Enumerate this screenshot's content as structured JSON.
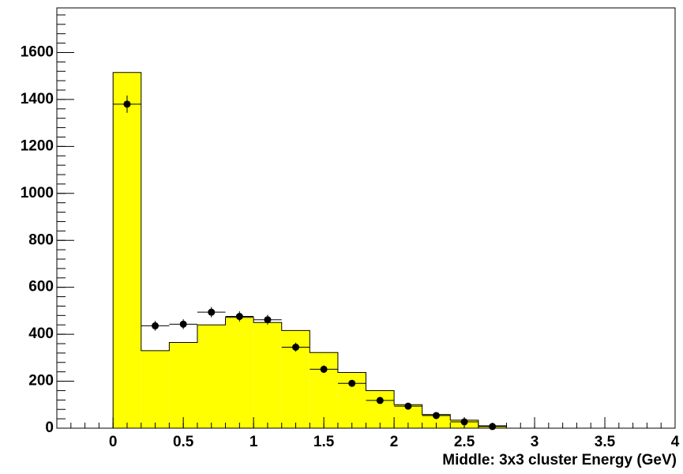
{
  "chart_data": {
    "type": "histogram",
    "xlabel": "Middle: 3x3 cluster Energy (GeV)",
    "bins": [
      0,
      0.2,
      0.4,
      0.6,
      0.8,
      1.0,
      1.2,
      1.4,
      1.6,
      1.8,
      2.0,
      2.2,
      2.4,
      2.6,
      2.8
    ],
    "values": [
      1515,
      330,
      365,
      440,
      472,
      450,
      416,
      322,
      237,
      160,
      100,
      58,
      34,
      10
    ],
    "color": "#ffff00",
    "points": {
      "x": [
        0.1,
        0.3,
        0.5,
        0.7,
        0.9,
        1.1,
        1.3,
        1.5,
        1.7,
        1.9,
        2.1,
        2.3,
        2.5,
        2.7
      ],
      "values": [
        1380,
        436,
        443,
        494,
        476,
        462,
        345,
        251,
        191,
        118,
        94,
        54,
        27,
        7
      ],
      "errors": [
        37,
        21,
        21,
        22,
        22,
        21,
        19,
        16,
        14,
        11,
        10,
        7,
        5,
        3
      ],
      "color": "#000000"
    },
    "xlim": [
      -0.4,
      4.0
    ],
    "ylim": [
      0,
      1790
    ],
    "xticks": [
      0,
      0.5,
      1,
      1.5,
      2,
      2.5,
      3,
      3.5,
      4
    ],
    "yticks": [
      0,
      200,
      400,
      600,
      800,
      1000,
      1200,
      1400,
      1600
    ]
  }
}
